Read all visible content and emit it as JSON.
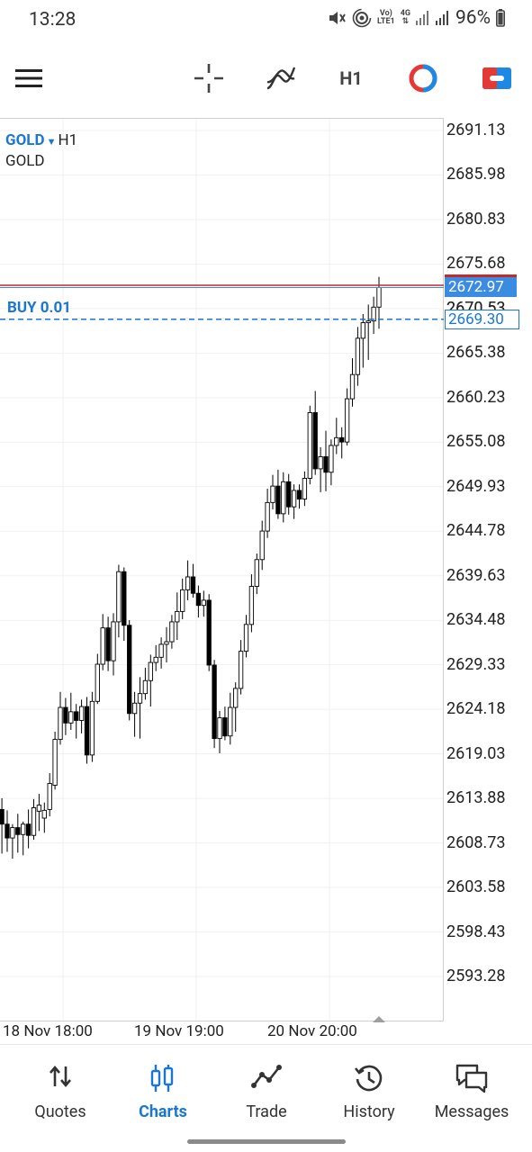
{
  "status_bar": {
    "time": "13:28",
    "network_line1": "Vo)",
    "network_line2": "LTE1",
    "network_type": "4G",
    "battery": "96%",
    "icons": [
      "mute-icon",
      "hotspot-icon",
      "signal-icon",
      "battery-icon"
    ]
  },
  "toolbar": {
    "menu_icon": "hamburger-icon",
    "crosshair_icon": "crosshair-icon",
    "indicators_icon": "indicators-icon",
    "timeframe": "H1",
    "trade_icon": "one-click-trading-icon",
    "objects_icon": "chart-objects-icon"
  },
  "chart": {
    "symbol": "GOLD",
    "timeframe": "H1",
    "description": "GOLD",
    "order_label": "BUY 0.01",
    "ask_price": "2672.97",
    "order_price": "2669.30",
    "hidden_tick": "2670.53",
    "price_ticks": [
      "2691.13",
      "2685.98",
      "2680.83",
      "2675.68",
      "2670.53",
      "2665.38",
      "2660.23",
      "2655.08",
      "2649.93",
      "2644.78",
      "2639.63",
      "2634.48",
      "2629.33",
      "2624.18",
      "2619.03",
      "2613.88",
      "2608.73",
      "2603.58",
      "2598.43",
      "2593.28"
    ],
    "time_labels": [
      "18 Nov 18:00",
      "19 Nov 19:00",
      "20 Nov 20:00"
    ],
    "colors": {
      "ask_line": "#c62828",
      "bid_line": "#3b8ce0",
      "order_line": "#1976d2",
      "candle": "#000000"
    }
  },
  "chart_data": {
    "type": "candlestick",
    "title": "GOLD, H1",
    "ylim": [
      2588.1,
      2696.3
    ],
    "x_labels": [
      "18 Nov 18:00",
      "19 Nov 19:00",
      "20 Nov 20:00"
    ],
    "candles": [
      {
        "o": 2612.6,
        "h": 2613.9,
        "l": 2607.5,
        "c": 2610.9
      },
      {
        "o": 2610.9,
        "h": 2612.5,
        "l": 2607.7,
        "c": 2609.3
      },
      {
        "o": 2609.3,
        "h": 2610.9,
        "l": 2606.9,
        "c": 2610.5
      },
      {
        "o": 2610.5,
        "h": 2612.1,
        "l": 2607.6,
        "c": 2609.7
      },
      {
        "o": 2609.7,
        "h": 2611.2,
        "l": 2607.3,
        "c": 2610.9
      },
      {
        "o": 2610.9,
        "h": 2612.6,
        "l": 2608.1,
        "c": 2609.6
      },
      {
        "o": 2609.6,
        "h": 2613.8,
        "l": 2609.1,
        "c": 2612.8
      },
      {
        "o": 2612.4,
        "h": 2614.4,
        "l": 2610.1,
        "c": 2613.1
      },
      {
        "o": 2611.6,
        "h": 2613.4,
        "l": 2609.9,
        "c": 2612.5
      },
      {
        "o": 2612.6,
        "h": 2616.8,
        "l": 2611.8,
        "c": 2615.6
      },
      {
        "o": 2615.4,
        "h": 2621.6,
        "l": 2614.9,
        "c": 2620.7
      },
      {
        "o": 2620.7,
        "h": 2626.2,
        "l": 2620.1,
        "c": 2624.4
      },
      {
        "o": 2624.4,
        "h": 2625.5,
        "l": 2621.2,
        "c": 2622.6
      },
      {
        "o": 2622.6,
        "h": 2626.1,
        "l": 2621.8,
        "c": 2623.9
      },
      {
        "o": 2623.9,
        "h": 2624.8,
        "l": 2620.8,
        "c": 2622.9
      },
      {
        "o": 2622.9,
        "h": 2625.3,
        "l": 2621.4,
        "c": 2624.5
      },
      {
        "o": 2624.5,
        "h": 2625.6,
        "l": 2617.9,
        "c": 2618.9
      },
      {
        "o": 2618.9,
        "h": 2626.2,
        "l": 2618.1,
        "c": 2625.1
      },
      {
        "o": 2625.1,
        "h": 2630.6,
        "l": 2624.8,
        "c": 2629.4
      },
      {
        "o": 2629.4,
        "h": 2635.2,
        "l": 2628.7,
        "c": 2633.6
      },
      {
        "o": 2633.6,
        "h": 2634.9,
        "l": 2628.6,
        "c": 2629.8
      },
      {
        "o": 2629.8,
        "h": 2635.3,
        "l": 2628.1,
        "c": 2634.3
      },
      {
        "o": 2634.3,
        "h": 2640.9,
        "l": 2632.5,
        "c": 2640.1
      },
      {
        "o": 2640.1,
        "h": 2640.6,
        "l": 2632.1,
        "c": 2633.9
      },
      {
        "o": 2633.9,
        "h": 2634.5,
        "l": 2622.9,
        "c": 2623.7
      },
      {
        "o": 2623.7,
        "h": 2626.2,
        "l": 2621.0,
        "c": 2624.9
      },
      {
        "o": 2624.9,
        "h": 2627.9,
        "l": 2620.8,
        "c": 2626.0
      },
      {
        "o": 2626.0,
        "h": 2629.0,
        "l": 2625.3,
        "c": 2627.5
      },
      {
        "o": 2627.5,
        "h": 2630.5,
        "l": 2624.5,
        "c": 2629.6
      },
      {
        "o": 2629.6,
        "h": 2631.6,
        "l": 2628.6,
        "c": 2630.2
      },
      {
        "o": 2630.2,
        "h": 2632.5,
        "l": 2628.9,
        "c": 2631.7
      },
      {
        "o": 2631.7,
        "h": 2633.7,
        "l": 2629.6,
        "c": 2632.0
      },
      {
        "o": 2632.0,
        "h": 2635.1,
        "l": 2631.2,
        "c": 2634.3
      },
      {
        "o": 2634.3,
        "h": 2637.7,
        "l": 2632.2,
        "c": 2635.5
      },
      {
        "o": 2635.5,
        "h": 2639.3,
        "l": 2634.6,
        "c": 2638.0
      },
      {
        "o": 2638.0,
        "h": 2641.4,
        "l": 2636.8,
        "c": 2639.5
      },
      {
        "o": 2639.5,
        "h": 2641.0,
        "l": 2637.1,
        "c": 2637.6
      },
      {
        "o": 2637.6,
        "h": 2638.5,
        "l": 2634.8,
        "c": 2636.2
      },
      {
        "o": 2636.2,
        "h": 2637.9,
        "l": 2634.9,
        "c": 2636.8
      },
      {
        "o": 2636.8,
        "h": 2637.5,
        "l": 2628.6,
        "c": 2629.3
      },
      {
        "o": 2629.3,
        "h": 2629.9,
        "l": 2619.7,
        "c": 2620.8
      },
      {
        "o": 2620.8,
        "h": 2624.0,
        "l": 2619.1,
        "c": 2623.2
      },
      {
        "o": 2623.2,
        "h": 2624.5,
        "l": 2620.6,
        "c": 2621.1
      },
      {
        "o": 2621.1,
        "h": 2626.1,
        "l": 2620.1,
        "c": 2624.4
      },
      {
        "o": 2624.4,
        "h": 2627.3,
        "l": 2621.6,
        "c": 2626.6
      },
      {
        "o": 2626.6,
        "h": 2632.2,
        "l": 2625.9,
        "c": 2630.9
      },
      {
        "o": 2630.9,
        "h": 2635.1,
        "l": 2630.2,
        "c": 2634.0
      },
      {
        "o": 2634.0,
        "h": 2639.8,
        "l": 2633.1,
        "c": 2638.4
      },
      {
        "o": 2638.4,
        "h": 2642.2,
        "l": 2637.5,
        "c": 2641.5
      },
      {
        "o": 2641.5,
        "h": 2646.0,
        "l": 2640.3,
        "c": 2644.8
      },
      {
        "o": 2644.8,
        "h": 2649.7,
        "l": 2644.0,
        "c": 2648.1
      },
      {
        "o": 2648.1,
        "h": 2651.3,
        "l": 2647.3,
        "c": 2650.0
      },
      {
        "o": 2650.0,
        "h": 2651.9,
        "l": 2646.2,
        "c": 2646.8
      },
      {
        "o": 2646.8,
        "h": 2651.6,
        "l": 2645.8,
        "c": 2650.5
      },
      {
        "o": 2650.5,
        "h": 2651.4,
        "l": 2646.7,
        "c": 2647.6
      },
      {
        "o": 2647.6,
        "h": 2650.2,
        "l": 2646.2,
        "c": 2649.5
      },
      {
        "o": 2649.5,
        "h": 2650.2,
        "l": 2647.4,
        "c": 2648.5
      },
      {
        "o": 2648.5,
        "h": 2651.7,
        "l": 2647.7,
        "c": 2650.9
      },
      {
        "o": 2650.9,
        "h": 2659.3,
        "l": 2650.2,
        "c": 2658.5
      },
      {
        "o": 2658.5,
        "h": 2661.0,
        "l": 2651.3,
        "c": 2652.0
      },
      {
        "o": 2652.0,
        "h": 2654.5,
        "l": 2649.3,
        "c": 2653.4
      },
      {
        "o": 2653.4,
        "h": 2656.4,
        "l": 2649.4,
        "c": 2651.6
      },
      {
        "o": 2651.6,
        "h": 2655.4,
        "l": 2650.1,
        "c": 2654.7
      },
      {
        "o": 2654.7,
        "h": 2657.9,
        "l": 2653.7,
        "c": 2655.6
      },
      {
        "o": 2655.6,
        "h": 2656.8,
        "l": 2653.2,
        "c": 2655.1
      },
      {
        "o": 2655.1,
        "h": 2661.3,
        "l": 2654.7,
        "c": 2660.1
      },
      {
        "o": 2660.1,
        "h": 2664.8,
        "l": 2659.2,
        "c": 2662.9
      },
      {
        "o": 2662.9,
        "h": 2668.4,
        "l": 2661.6,
        "c": 2667.1
      },
      {
        "o": 2667.1,
        "h": 2669.9,
        "l": 2663.7,
        "c": 2668.9
      },
      {
        "o": 2668.9,
        "h": 2671.0,
        "l": 2664.6,
        "c": 2669.1
      },
      {
        "o": 2669.1,
        "h": 2671.9,
        "l": 2667.6,
        "c": 2670.7
      },
      {
        "o": 2670.7,
        "h": 2674.2,
        "l": 2668.2,
        "c": 2672.97
      }
    ]
  },
  "bottom_nav": {
    "items": [
      {
        "label": "Quotes",
        "icon": "quotes-icon",
        "active": false
      },
      {
        "label": "Charts",
        "icon": "charts-icon",
        "active": true
      },
      {
        "label": "Trade",
        "icon": "trade-icon",
        "active": false
      },
      {
        "label": "History",
        "icon": "history-icon",
        "active": false
      },
      {
        "label": "Messages",
        "icon": "messages-icon",
        "active": false
      }
    ]
  }
}
